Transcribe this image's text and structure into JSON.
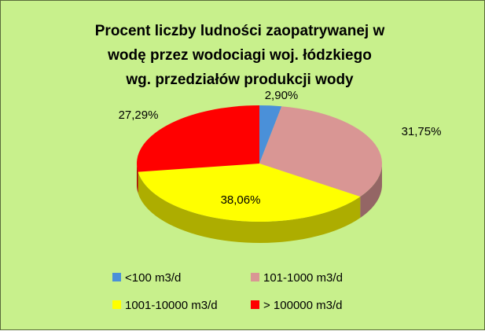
{
  "chart_data": {
    "type": "pie",
    "title_lines": [
      "Procent liczby ludności zaopatrywanej w",
      "wodę przez wodociagi woj. łódzkiego",
      "wg. przedziałów produkcji wody"
    ],
    "labels": [
      "<100 m3/d",
      "101-1000 m3/d",
      "1001-10000 m3/d",
      "> 100000 m3/d"
    ],
    "values": [
      2.9,
      31.75,
      38.06,
      27.29
    ],
    "value_labels": [
      "2,90%",
      "31,75%",
      "38,06%",
      "27,29%"
    ],
    "colors": [
      "#4a90d9",
      "#d99694",
      "#ffff00",
      "#ff0000"
    ],
    "legend_position": "bottom",
    "style": "3d"
  }
}
